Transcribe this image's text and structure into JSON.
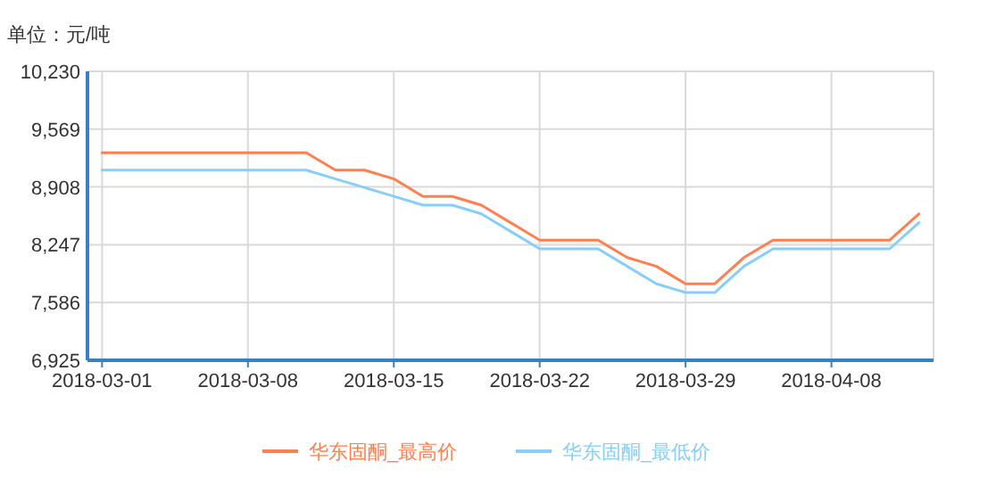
{
  "chart_data": {
    "type": "line",
    "ylabel": "单位：元/吨",
    "categories": [
      "2018-03-01",
      null,
      null,
      null,
      null,
      "2018-03-08",
      null,
      null,
      null,
      null,
      "2018-03-15",
      null,
      null,
      null,
      null,
      "2018-03-22",
      null,
      null,
      null,
      null,
      "2018-03-29",
      null,
      null,
      null,
      null,
      "2018-04-08",
      null,
      null,
      null
    ],
    "series": [
      {
        "name": "华东固酮_最高价",
        "color": "#ff7f50",
        "values": [
          9300,
          9300,
          9300,
          9300,
          9300,
          9300,
          9300,
          9300,
          9100,
          9100,
          9000,
          8800,
          8800,
          8700,
          8500,
          8300,
          8300,
          8300,
          8100,
          8000,
          7800,
          7800,
          8100,
          8300,
          8300,
          8300,
          8300,
          8300,
          8600
        ]
      },
      {
        "name": "华东固酮_最低价",
        "color": "#87cefa",
        "values": [
          9100,
          9100,
          9100,
          9100,
          9100,
          9100,
          9100,
          9100,
          9000,
          8900,
          8800,
          8700,
          8700,
          8600,
          8400,
          8200,
          8200,
          8200,
          8000,
          7800,
          7700,
          7700,
          8000,
          8200,
          8200,
          8200,
          8200,
          8200,
          8500
        ]
      }
    ],
    "ylim": [
      6925,
      10230
    ],
    "yticks": [
      {
        "value": 6925,
        "label": "6,925"
      },
      {
        "value": 7586,
        "label": "7,586"
      },
      {
        "value": 8247,
        "label": "8,247"
      },
      {
        "value": 8908,
        "label": "8,908"
      },
      {
        "value": 9569,
        "label": "9,569"
      },
      {
        "value": 10230,
        "label": "10,230"
      }
    ],
    "grid": true,
    "legend": "bottom",
    "marker": "none",
    "line_style": "solid"
  }
}
